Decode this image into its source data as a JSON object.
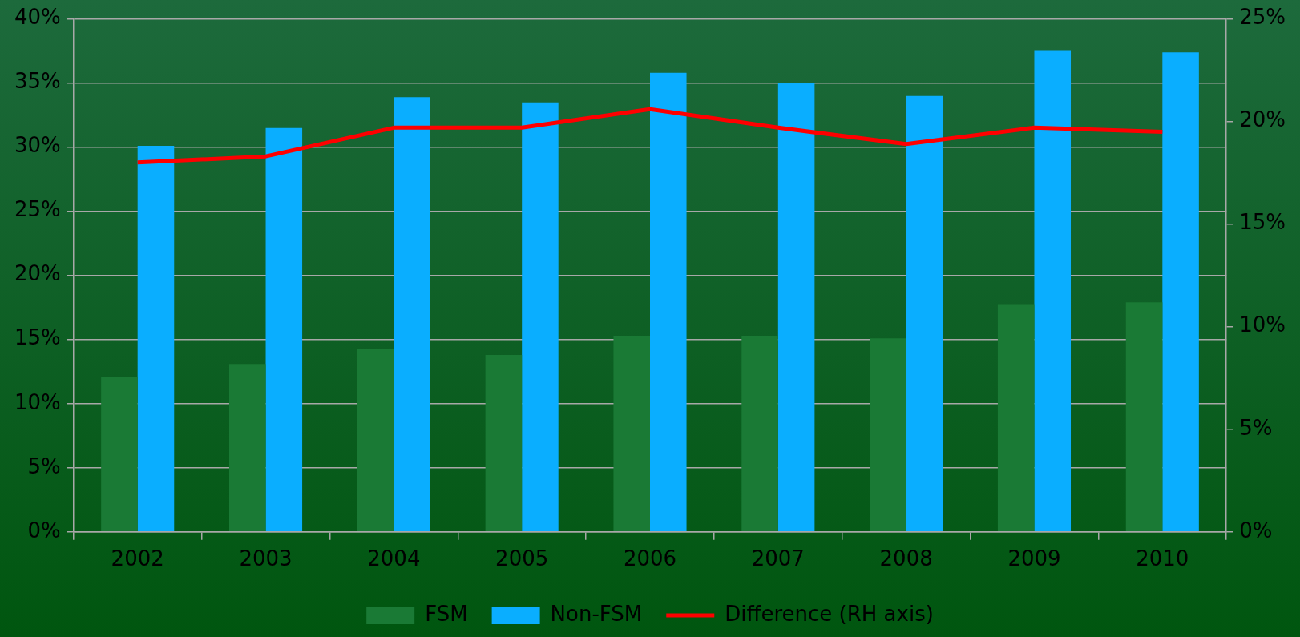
{
  "chart_data": {
    "type": "bar",
    "categories": [
      "2002",
      "2003",
      "2004",
      "2005",
      "2006",
      "2007",
      "2008",
      "2009",
      "2010"
    ],
    "series": [
      {
        "name": "FSM",
        "color": "#1a7a35",
        "values": [
          12.1,
          13.1,
          14.3,
          13.8,
          15.3,
          15.3,
          15.1,
          17.7,
          17.9
        ]
      },
      {
        "name": "Non-FSM",
        "color": "#0aaeff",
        "values": [
          30.1,
          31.5,
          33.9,
          33.5,
          35.8,
          35.0,
          34.0,
          37.5,
          37.4
        ]
      },
      {
        "name": "Difference (RH axis)",
        "type": "line",
        "axis": "y2",
        "color": "#ff0000",
        "values": [
          18.0,
          18.3,
          19.7,
          19.7,
          20.6,
          19.7,
          18.9,
          19.7,
          19.5
        ]
      }
    ],
    "ylim": [
      0,
      40
    ],
    "yticks": [
      {
        "value": 0,
        "label": "0%"
      },
      {
        "value": 5,
        "label": "5%"
      },
      {
        "value": 10,
        "label": "10%"
      },
      {
        "value": 15,
        "label": "15%"
      },
      {
        "value": 20,
        "label": "20%"
      },
      {
        "value": 25,
        "label": "25%"
      },
      {
        "value": 30,
        "label": "30%"
      },
      {
        "value": 35,
        "label": "35%"
      },
      {
        "value": 40,
        "label": "40%"
      }
    ],
    "y2lim": [
      0,
      25
    ],
    "y2ticks": [
      {
        "value": 0,
        "label": "0%"
      },
      {
        "value": 5,
        "label": "5%"
      },
      {
        "value": 10,
        "label": "10%"
      },
      {
        "value": 15,
        "label": "15%"
      },
      {
        "value": 20,
        "label": "20%"
      },
      {
        "value": 25,
        "label": "25%"
      }
    ],
    "grid": "y",
    "legend": "bottom",
    "marker": "none",
    "line_style": "solid"
  }
}
